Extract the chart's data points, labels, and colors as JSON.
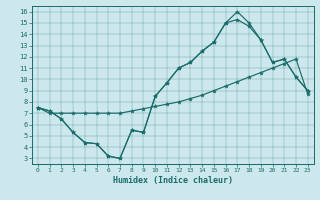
{
  "bg_color": "#cde8ec",
  "line_color": "#1a6b6b",
  "xlabel": "Humidex (Indice chaleur)",
  "xlim": [
    -0.5,
    23.5
  ],
  "ylim": [
    2.5,
    16.5
  ],
  "xticks": [
    0,
    1,
    2,
    3,
    4,
    5,
    6,
    7,
    8,
    9,
    10,
    11,
    12,
    13,
    14,
    15,
    16,
    17,
    18,
    19,
    20,
    21,
    22,
    23
  ],
  "yticks": [
    3,
    4,
    5,
    6,
    7,
    8,
    9,
    10,
    11,
    12,
    13,
    14,
    15,
    16
  ],
  "series1_y": [
    7.5,
    7.2,
    6.5,
    5.3,
    4.4,
    4.3,
    3.2,
    3.0,
    5.5,
    5.3,
    8.5,
    9.7,
    11.0,
    11.5,
    12.5,
    13.3,
    15.0,
    16.0,
    15.0,
    13.5,
    11.5,
    11.8,
    10.2,
    9.0
  ],
  "series2_y": [
    7.5,
    7.2,
    6.5,
    5.3,
    4.4,
    4.3,
    3.2,
    3.0,
    5.5,
    5.3,
    8.5,
    9.7,
    11.0,
    11.5,
    12.5,
    13.3,
    15.0,
    15.3,
    14.7,
    13.5,
    11.5,
    11.8,
    10.2,
    9.0
  ],
  "series3_y": [
    7.5,
    7.0,
    7.0,
    7.0,
    7.0,
    7.0,
    7.0,
    7.0,
    7.2,
    7.4,
    7.6,
    7.8,
    8.0,
    8.3,
    8.6,
    9.0,
    9.4,
    9.8,
    10.2,
    10.6,
    11.0,
    11.4,
    11.8,
    8.7
  ]
}
